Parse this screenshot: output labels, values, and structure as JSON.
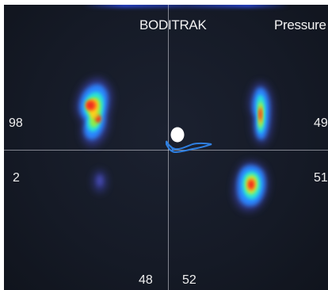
{
  "header": {
    "brand": "BODITRAK",
    "mode": "Pressure"
  },
  "readouts": {
    "left_top": "98",
    "left_bottom": "2",
    "right_top": "49",
    "right_bottom": "51",
    "bottom_left": "48",
    "bottom_right": "52"
  },
  "colors": {
    "background": "#151a26",
    "trace": "#2f7fe0",
    "cop_marker": "#ffffff"
  }
}
